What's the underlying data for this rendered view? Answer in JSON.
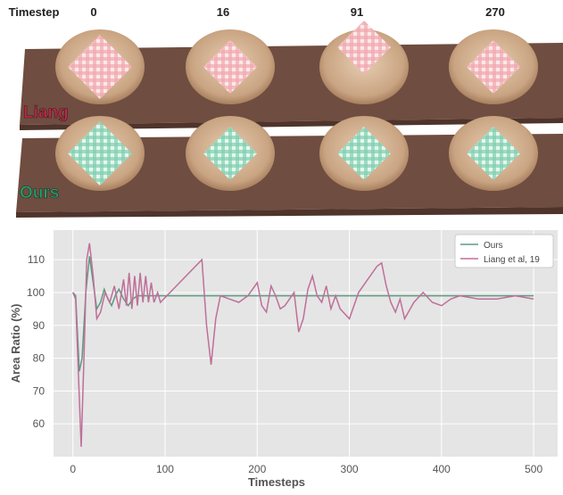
{
  "timestep_label": "Timestep",
  "timesteps": [
    "0",
    "16",
    "91",
    "270"
  ],
  "row_labels": [
    "Liang",
    "Ours"
  ],
  "chart_data": {
    "type": "line",
    "xlabel": "Timesteps",
    "ylabel": "Area Ratio (%)",
    "xlim": [
      -21,
      526
    ],
    "ylim": [
      50,
      119
    ],
    "xticks": [
      0,
      100,
      200,
      300,
      400,
      500
    ],
    "yticks": [
      60,
      70,
      80,
      90,
      100,
      110
    ],
    "grid": true,
    "legend": "upper right",
    "series": [
      {
        "name": "Ours",
        "color": "#5e9a80",
        "x": [
          0,
          3,
          7,
          10,
          14,
          18,
          22,
          26,
          30,
          34,
          38,
          42,
          46,
          50,
          55,
          60,
          65,
          70,
          80,
          95,
          500
        ],
        "values": [
          100,
          99,
          76,
          80,
          100,
          111,
          103,
          95,
          97,
          101,
          98,
          96,
          99,
          101,
          98,
          96,
          98,
          99,
          99,
          99,
          99
        ]
      },
      {
        "name": "Liang et al, 19",
        "color": "#bf6f99",
        "x": [
          0,
          3,
          6,
          9,
          12,
          15,
          18,
          22,
          26,
          30,
          35,
          40,
          45,
          50,
          55,
          58,
          61,
          64,
          67,
          70,
          73,
          76,
          79,
          82,
          85,
          88,
          92,
          95,
          140,
          145,
          150,
          155,
          160,
          170,
          180,
          190,
          200,
          205,
          210,
          215,
          220,
          225,
          230,
          240,
          245,
          250,
          255,
          260,
          265,
          270,
          275,
          280,
          285,
          290,
          300,
          310,
          320,
          330,
          335,
          340,
          345,
          350,
          355,
          360,
          370,
          380,
          390,
          400,
          410,
          420,
          440,
          460,
          480,
          500
        ],
        "values": [
          100,
          98,
          75,
          53,
          80,
          110,
          115,
          105,
          92,
          94,
          100,
          97,
          102,
          95,
          104,
          96,
          106,
          95,
          105,
          96,
          106,
          97,
          105,
          97,
          103,
          97,
          100,
          97,
          110,
          90,
          78,
          92,
          99,
          98,
          97,
          99,
          103,
          96,
          94,
          102,
          99,
          95,
          96,
          100,
          88,
          92,
          101,
          105,
          99,
          97,
          102,
          95,
          99,
          95,
          92,
          100,
          104,
          108,
          109,
          102,
          97,
          94,
          98,
          92,
          97,
          100,
          97,
          96,
          98,
          99,
          98,
          98,
          99,
          98
        ]
      }
    ]
  }
}
